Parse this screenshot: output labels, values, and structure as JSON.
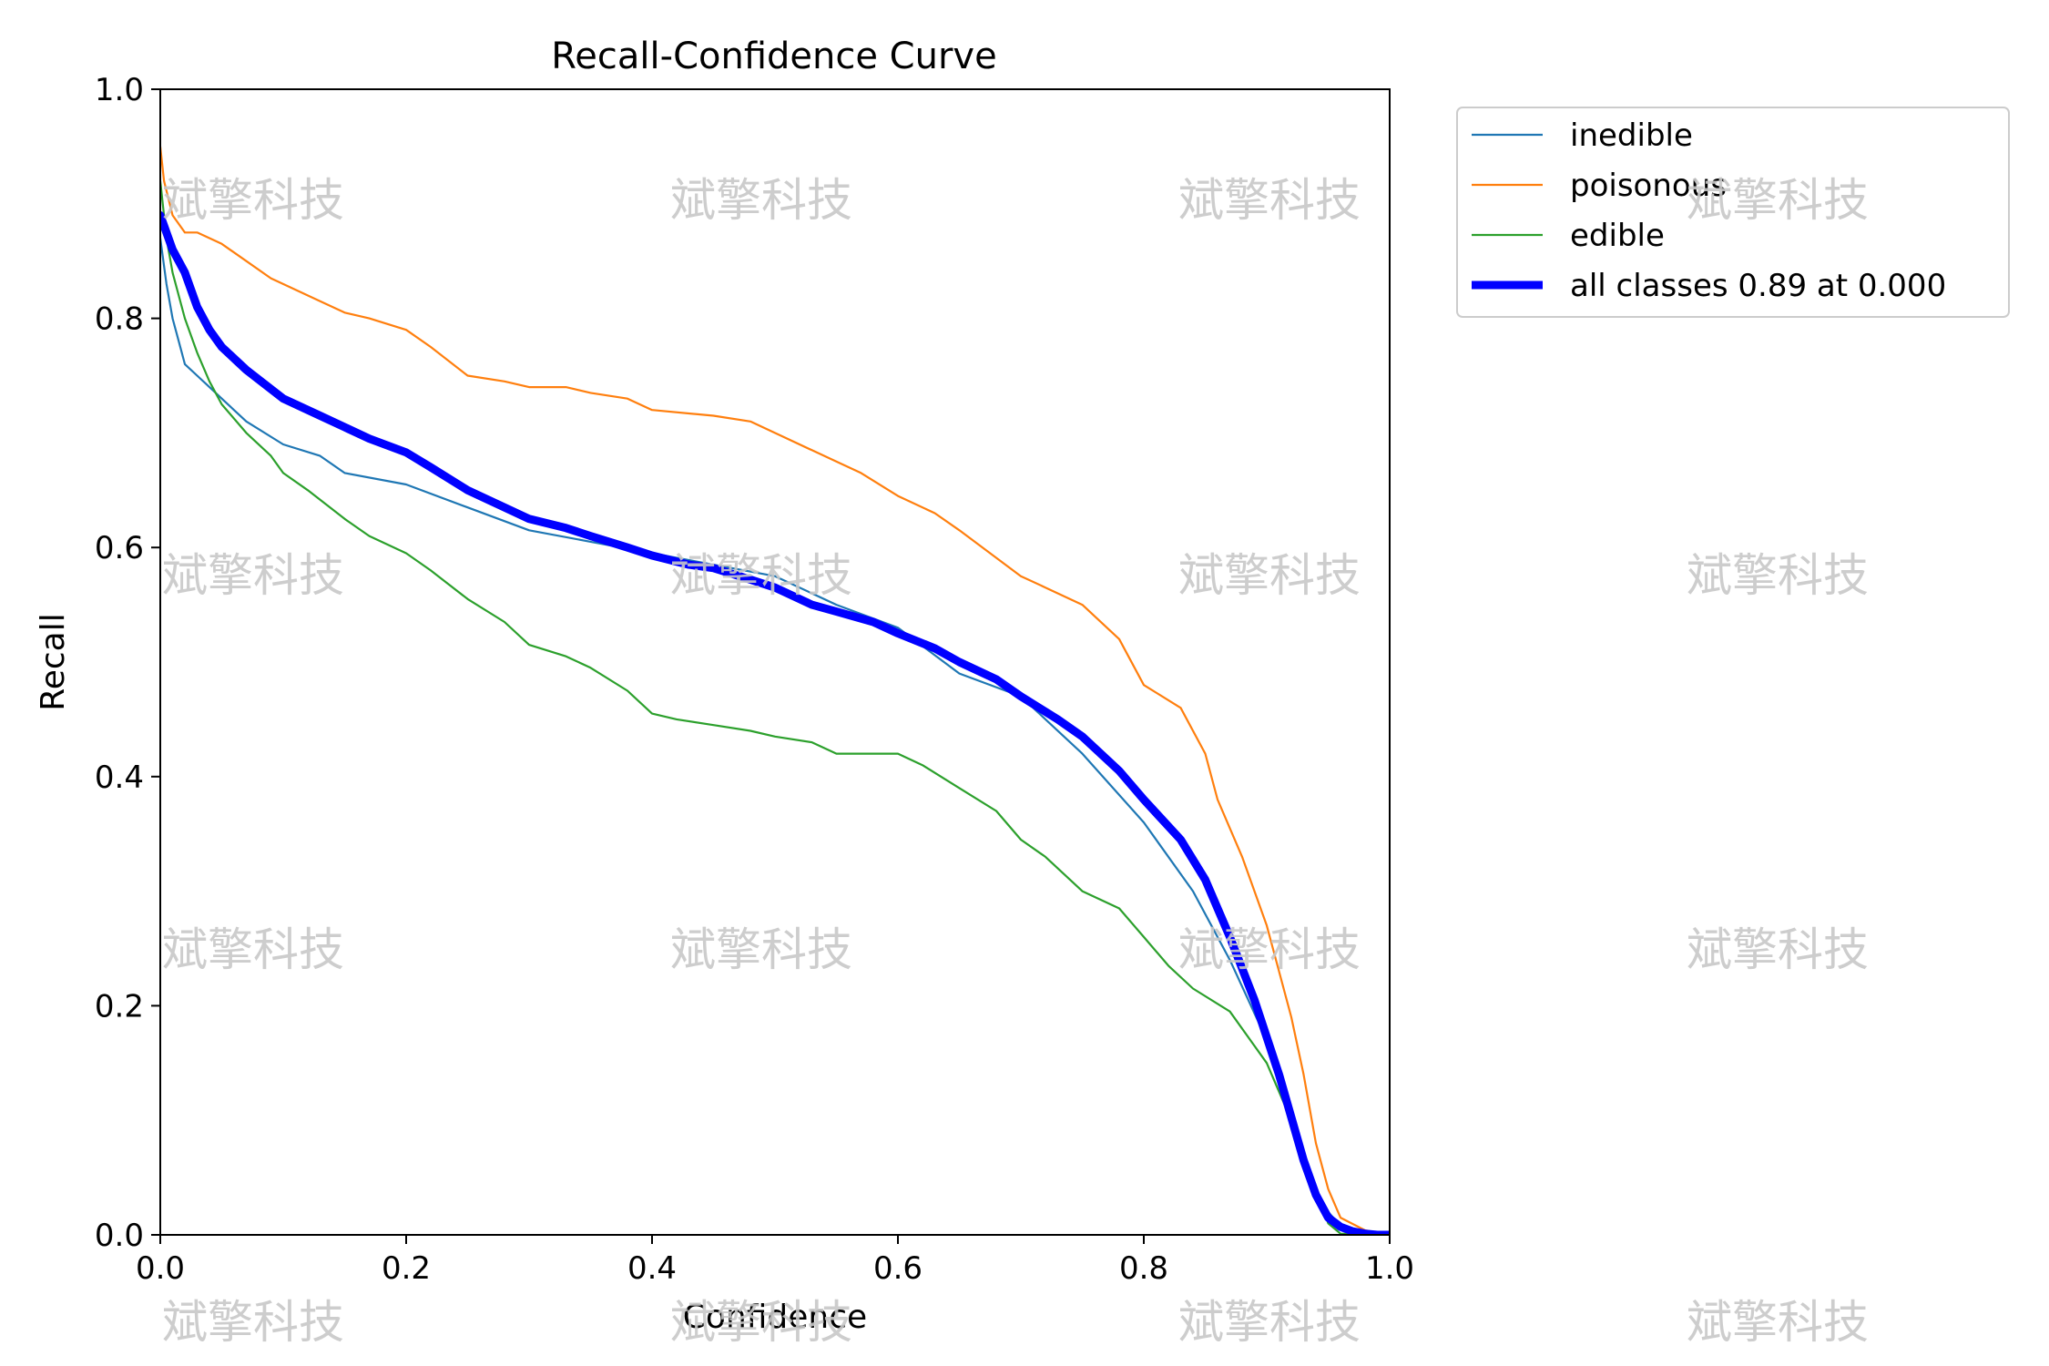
{
  "chart_data": {
    "type": "line",
    "title": "Recall-Confidence Curve",
    "xlabel": "Confidence",
    "ylabel": "Recall",
    "xlim": [
      0.0,
      1.0
    ],
    "ylim": [
      0.0,
      1.0
    ],
    "xticks": [
      "0.0",
      "0.2",
      "0.4",
      "0.6",
      "0.8",
      "1.0"
    ],
    "yticks": [
      "0.0",
      "0.2",
      "0.4",
      "0.6",
      "0.8",
      "1.0"
    ],
    "legend_position": "outside-top-right",
    "series": [
      {
        "name": "inedible",
        "color": "#1f77b4",
        "x": [
          0.0,
          0.005,
          0.01,
          0.015,
          0.02,
          0.03,
          0.04,
          0.05,
          0.07,
          0.1,
          0.13,
          0.15,
          0.2,
          0.25,
          0.3,
          0.35,
          0.4,
          0.45,
          0.5,
          0.55,
          0.6,
          0.65,
          0.7,
          0.75,
          0.8,
          0.84,
          0.87,
          0.9,
          0.92,
          0.94,
          0.95,
          0.96,
          0.97,
          0.98,
          1.0
        ],
        "y": [
          0.87,
          0.83,
          0.8,
          0.78,
          0.76,
          0.75,
          0.74,
          0.73,
          0.71,
          0.69,
          0.68,
          0.665,
          0.655,
          0.635,
          0.615,
          0.605,
          0.595,
          0.585,
          0.575,
          0.55,
          0.53,
          0.49,
          0.47,
          0.42,
          0.36,
          0.3,
          0.24,
          0.17,
          0.1,
          0.04,
          0.02,
          0.008,
          0.003,
          0.001,
          0.0
        ]
      },
      {
        "name": "poisonous",
        "color": "#ff7f0e",
        "x": [
          0.0,
          0.003,
          0.01,
          0.02,
          0.03,
          0.05,
          0.07,
          0.09,
          0.1,
          0.13,
          0.15,
          0.17,
          0.2,
          0.22,
          0.25,
          0.28,
          0.3,
          0.33,
          0.35,
          0.38,
          0.4,
          0.45,
          0.48,
          0.5,
          0.53,
          0.57,
          0.6,
          0.63,
          0.65,
          0.7,
          0.72,
          0.75,
          0.78,
          0.8,
          0.83,
          0.85,
          0.86,
          0.88,
          0.9,
          0.92,
          0.93,
          0.94,
          0.95,
          0.96,
          0.98,
          1.0
        ],
        "y": [
          0.95,
          0.92,
          0.89,
          0.875,
          0.875,
          0.865,
          0.85,
          0.835,
          0.83,
          0.815,
          0.805,
          0.8,
          0.79,
          0.775,
          0.75,
          0.745,
          0.74,
          0.74,
          0.735,
          0.73,
          0.72,
          0.715,
          0.71,
          0.7,
          0.685,
          0.665,
          0.645,
          0.63,
          0.615,
          0.575,
          0.565,
          0.55,
          0.52,
          0.48,
          0.46,
          0.42,
          0.38,
          0.33,
          0.27,
          0.19,
          0.14,
          0.08,
          0.04,
          0.015,
          0.004,
          0.0
        ]
      },
      {
        "name": "edible",
        "color": "#2ca02c",
        "x": [
          0.0,
          0.005,
          0.01,
          0.02,
          0.03,
          0.04,
          0.05,
          0.07,
          0.09,
          0.1,
          0.12,
          0.15,
          0.17,
          0.2,
          0.22,
          0.25,
          0.28,
          0.3,
          0.33,
          0.35,
          0.38,
          0.4,
          0.42,
          0.45,
          0.48,
          0.5,
          0.53,
          0.55,
          0.6,
          0.62,
          0.65,
          0.68,
          0.7,
          0.72,
          0.75,
          0.78,
          0.8,
          0.82,
          0.84,
          0.87,
          0.9,
          0.92,
          0.94,
          0.95,
          0.96,
          1.0
        ],
        "y": [
          0.92,
          0.87,
          0.84,
          0.8,
          0.77,
          0.745,
          0.725,
          0.7,
          0.68,
          0.665,
          0.65,
          0.625,
          0.61,
          0.595,
          0.58,
          0.555,
          0.535,
          0.515,
          0.505,
          0.495,
          0.475,
          0.455,
          0.45,
          0.445,
          0.44,
          0.435,
          0.43,
          0.42,
          0.42,
          0.41,
          0.39,
          0.37,
          0.345,
          0.33,
          0.3,
          0.285,
          0.26,
          0.235,
          0.215,
          0.195,
          0.15,
          0.1,
          0.04,
          0.01,
          0.001,
          0.0
        ]
      },
      {
        "name": "all classes 0.89 at 0.000",
        "color": "#0000ff",
        "bold": true,
        "x": [
          0.0,
          0.01,
          0.02,
          0.03,
          0.04,
          0.05,
          0.07,
          0.1,
          0.13,
          0.15,
          0.17,
          0.2,
          0.22,
          0.25,
          0.28,
          0.3,
          0.33,
          0.35,
          0.38,
          0.4,
          0.43,
          0.45,
          0.48,
          0.5,
          0.53,
          0.55,
          0.58,
          0.6,
          0.63,
          0.65,
          0.68,
          0.7,
          0.73,
          0.75,
          0.78,
          0.8,
          0.83,
          0.85,
          0.87,
          0.89,
          0.91,
          0.93,
          0.94,
          0.95,
          0.96,
          0.97,
          0.98,
          0.99,
          1.0
        ],
        "y": [
          0.89,
          0.86,
          0.84,
          0.81,
          0.79,
          0.775,
          0.755,
          0.73,
          0.715,
          0.705,
          0.695,
          0.683,
          0.67,
          0.65,
          0.635,
          0.625,
          0.617,
          0.61,
          0.6,
          0.593,
          0.585,
          0.582,
          0.572,
          0.565,
          0.55,
          0.544,
          0.535,
          0.525,
          0.512,
          0.5,
          0.485,
          0.47,
          0.45,
          0.435,
          0.405,
          0.38,
          0.345,
          0.31,
          0.26,
          0.205,
          0.14,
          0.065,
          0.035,
          0.015,
          0.007,
          0.003,
          0.001,
          0.0,
          0.0
        ]
      }
    ]
  },
  "watermarks": [
    "斌擎科技",
    "斌擎科技",
    "斌擎科技",
    "斌擎科技",
    "斌擎科技",
    "斌擎科技",
    "斌擎科技",
    "斌擎科技",
    "斌擎科技",
    "斌擎科技",
    "斌擎科技",
    "斌擎科技",
    "斌擎科技",
    "斌擎科技",
    "斌擎科技",
    "斌擎科技"
  ]
}
